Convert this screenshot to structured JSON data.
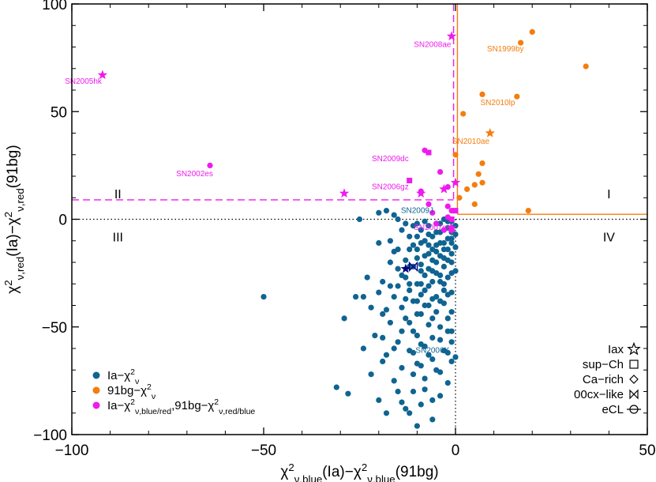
{
  "chart_data": {
    "type": "scatter",
    "xlim": [
      -100,
      50
    ],
    "ylim": [
      -100,
      100
    ],
    "x_ticks": [
      -100,
      -50,
      0,
      50
    ],
    "y_ticks": [
      -100,
      -50,
      0,
      50,
      100
    ],
    "xlabel": "χ²ν,blue(Ia)−χ²ν,blue(91bg)",
    "ylabel": "χ²ν,red(Ia)−χ²ν,red(91bg)",
    "colors": {
      "ia": "#0f6491",
      "bg": "#f47d0e",
      "mixed": "#ee1aee",
      "black": "#000000"
    },
    "guide_lines": {
      "magenta_horizontal_y": 9,
      "magenta_vertical_x": -0.5,
      "orange_vertical_x": 0.5,
      "orange_horizontal_y": 2.3,
      "dotted_zero": true
    },
    "quadrants": [
      {
        "label": "I",
        "x": 40,
        "y": 12
      },
      {
        "label": "II",
        "x": -88,
        "y": 12
      },
      {
        "label": "III",
        "x": -88,
        "y": -8
      },
      {
        "label": "IV",
        "x": 40,
        "y": -8
      }
    ],
    "series": [
      {
        "name": "Ia−χ²ν",
        "color": "#0f6491",
        "points": [
          [
            -50,
            -36
          ],
          [
            -29,
            -46
          ],
          [
            -31,
            -78
          ],
          [
            -28,
            -81
          ],
          [
            -24,
            -36
          ],
          [
            -26,
            -36
          ],
          [
            -25,
            0
          ],
          [
            -23,
            -27
          ],
          [
            -22,
            -41
          ],
          [
            -22,
            -72
          ],
          [
            -20,
            -34
          ],
          [
            -20,
            -84
          ],
          [
            -19,
            -29
          ],
          [
            -19,
            -55
          ],
          [
            -18,
            -42
          ],
          [
            -18,
            -63
          ],
          [
            -17,
            -20
          ],
          [
            -17,
            -48
          ],
          [
            -16,
            -36
          ],
          [
            -16,
            -75
          ],
          [
            -15,
            -23
          ],
          [
            -15,
            -31
          ],
          [
            -15,
            -57
          ],
          [
            -14,
            -41
          ],
          [
            -14,
            -69
          ],
          [
            -14,
            -85
          ],
          [
            -13,
            -19
          ],
          [
            -13,
            -27
          ],
          [
            -13,
            -46
          ],
          [
            -12,
            -33
          ],
          [
            -12,
            -61
          ],
          [
            -12,
            -90
          ],
          [
            -11,
            -22
          ],
          [
            -11,
            -38
          ],
          [
            -11,
            -52
          ],
          [
            -11,
            -80
          ],
          [
            -10,
            -14
          ],
          [
            -10,
            -30
          ],
          [
            -10,
            -44
          ],
          [
            -10,
            -67
          ],
          [
            -10,
            -96
          ],
          [
            -9,
            -5
          ],
          [
            -9,
            -21
          ],
          [
            -9,
            -35
          ],
          [
            -9,
            -58
          ],
          [
            -9,
            -86
          ],
          [
            -8,
            -10
          ],
          [
            -8,
            -26
          ],
          [
            -8,
            -40
          ],
          [
            -8,
            -74
          ],
          [
            -7,
            -3
          ],
          [
            -7,
            -16
          ],
          [
            -7,
            -31
          ],
          [
            -7,
            -49
          ],
          [
            -7,
            -63
          ],
          [
            -6,
            -8
          ],
          [
            -6,
            -19
          ],
          [
            -6,
            -37
          ],
          [
            -6,
            -55
          ],
          [
            -6,
            -93
          ],
          [
            -5,
            -2
          ],
          [
            -5,
            -12
          ],
          [
            -5,
            -25
          ],
          [
            -5,
            -43
          ],
          [
            -5,
            -70
          ],
          [
            -4,
            -6
          ],
          [
            -4,
            -17
          ],
          [
            -4,
            -29
          ],
          [
            -4,
            -50
          ],
          [
            -4,
            -82
          ],
          [
            -3,
            0
          ],
          [
            -3,
            -11
          ],
          [
            -3,
            -22
          ],
          [
            -3,
            -39
          ],
          [
            -3,
            -61
          ],
          [
            -2,
            -4
          ],
          [
            -2,
            -14
          ],
          [
            -2,
            -27
          ],
          [
            -2,
            -46
          ],
          [
            -2,
            -76
          ],
          [
            -1,
            -1
          ],
          [
            -1,
            -9
          ],
          [
            -1,
            -20
          ],
          [
            -1,
            -34
          ],
          [
            -1,
            -57
          ],
          [
            -1,
            -66
          ],
          [
            0,
            -3
          ],
          [
            0,
            -13
          ],
          [
            0,
            -24
          ],
          [
            0,
            -64
          ],
          [
            -20,
            3
          ],
          [
            -18,
            4
          ],
          [
            -16,
            2
          ],
          [
            -15,
            0
          ],
          [
            -14,
            -5
          ],
          [
            -13,
            -2
          ],
          [
            -12,
            -8
          ],
          [
            -11,
            -12
          ],
          [
            -10,
            -18
          ],
          [
            -9,
            -24
          ],
          [
            -8,
            -1
          ],
          [
            -7,
            -7
          ],
          [
            -6,
            -14
          ],
          [
            -5,
            -20
          ],
          [
            -4,
            -26
          ],
          [
            -3,
            -33
          ],
          [
            -2,
            -9
          ],
          [
            -1,
            -16
          ],
          [
            0,
            -7
          ],
          [
            -17,
            -10
          ],
          [
            -15,
            -14
          ],
          [
            -13,
            -37
          ],
          [
            -12,
            -22
          ],
          [
            -11,
            -3
          ],
          [
            -10,
            -8
          ],
          [
            -9,
            -11
          ],
          [
            -8,
            -17
          ],
          [
            -7,
            -23
          ],
          [
            -6,
            -29
          ],
          [
            -5,
            -6
          ],
          [
            -4,
            -2
          ],
          [
            -3,
            -5
          ],
          [
            -2,
            -19
          ],
          [
            -1,
            -25
          ],
          [
            -21,
            -54
          ],
          [
            -19,
            -66
          ],
          [
            -16,
            -60
          ],
          [
            -14,
            -52
          ],
          [
            -12,
            -48
          ],
          [
            -9,
            -44
          ],
          [
            -7,
            -40
          ],
          [
            -5,
            -36
          ],
          [
            -3,
            -30
          ],
          [
            -1,
            -43
          ],
          [
            -24,
            -60
          ],
          [
            -18,
            -90
          ],
          [
            -11,
            -72
          ],
          [
            -8,
            -79
          ],
          [
            -6,
            -84
          ],
          [
            -4,
            -38
          ],
          [
            -2,
            -35
          ],
          [
            -15,
            -80
          ],
          [
            -13,
            -88
          ],
          [
            -10,
            -54
          ],
          [
            -8,
            -59
          ],
          [
            -6,
            -65
          ],
          [
            -4,
            -71
          ],
          [
            -2,
            -52
          ],
          [
            -20,
            -11
          ],
          [
            -19,
            -44
          ],
          [
            -17,
            -31
          ],
          [
            -16,
            -15
          ],
          [
            -14,
            -26
          ],
          [
            -12,
            -14
          ],
          [
            -10,
            -2
          ],
          [
            -9,
            -30
          ],
          [
            -7,
            -12
          ],
          [
            -5,
            -15
          ],
          [
            -3,
            -18
          ],
          [
            -1,
            -6
          ],
          [
            -11,
            -62
          ],
          [
            -9,
            -68
          ],
          [
            -6,
            -46
          ],
          [
            -4,
            -56
          ],
          [
            -2,
            -62
          ],
          [
            -1,
            -52
          ],
          [
            -12,
            -30
          ],
          [
            -10,
            -38
          ],
          [
            -8,
            -33
          ],
          [
            -6,
            -24
          ],
          [
            -4,
            -11
          ],
          [
            -3,
            -14
          ],
          [
            -2,
            -1
          ],
          [
            -1,
            -11
          ]
        ]
      },
      {
        "name": "91bg−χ²ν",
        "color": "#f47d0e",
        "points": [
          [
            20,
            87
          ],
          [
            17,
            82
          ],
          [
            34,
            71
          ],
          [
            7,
            58
          ],
          [
            16,
            57
          ],
          [
            2,
            49
          ],
          [
            0,
            30
          ],
          [
            7,
            26
          ],
          [
            6,
            21
          ],
          [
            7,
            17
          ],
          [
            5,
            16
          ],
          [
            3,
            14
          ],
          [
            1,
            10
          ],
          [
            19,
            4
          ],
          [
            5,
            7
          ]
        ]
      },
      {
        "name": "Ia−χ²ν,blue/red,91bg−χ²ν,red/blue",
        "color": "#ee1aee",
        "points": [
          [
            -64,
            25
          ],
          [
            -8,
            32
          ],
          [
            -4,
            22
          ],
          [
            -2,
            15
          ],
          [
            -2,
            6
          ],
          [
            -1,
            4
          ],
          [
            -2,
            1
          ],
          [
            -7,
            7
          ],
          [
            -9,
            13
          ],
          [
            -5,
            -2
          ],
          [
            -3,
            -5
          ],
          [
            -1,
            0
          ],
          [
            -6,
            3
          ]
        ]
      }
    ],
    "special_points": [
      {
        "kind": "star",
        "x": -92,
        "y": 67,
        "color": "#ee1aee"
      },
      {
        "kind": "star",
        "x": -29,
        "y": 12,
        "color": "#ee1aee"
      },
      {
        "kind": "star",
        "x": -1,
        "y": 85,
        "color": "#ee1aee"
      },
      {
        "kind": "star",
        "x": -9,
        "y": 12,
        "color": "#ee1aee"
      },
      {
        "kind": "star",
        "x": -3,
        "y": 14,
        "color": "#ee1aee"
      },
      {
        "kind": "star",
        "x": 0,
        "y": 17,
        "color": "#ee1aee"
      },
      {
        "kind": "star",
        "x": -1,
        "y": -4,
        "color": "#ee1aee"
      },
      {
        "kind": "star",
        "x": 9,
        "y": 40,
        "color": "#f47d0e"
      },
      {
        "kind": "star",
        "x": -13,
        "y": -23,
        "color": "#000080"
      },
      {
        "kind": "square",
        "x": -7,
        "y": 31,
        "color": "#ee1aee"
      },
      {
        "kind": "square",
        "x": -12,
        "y": 18,
        "color": "#ee1aee"
      },
      {
        "kind": "square",
        "x": 0,
        "y": 4,
        "color": "#ee1aee"
      },
      {
        "kind": "square",
        "x": -1,
        "y": 0,
        "color": "#ee1aee"
      },
      {
        "kind": "diamond",
        "x": -1,
        "y": -5,
        "color": "#ee1aee"
      },
      {
        "kind": "bowtie",
        "x": -11,
        "y": -22,
        "color": "#000080"
      }
    ],
    "annotations": [
      {
        "text": "SN2005hk",
        "x": -97,
        "y": 63,
        "color": "#ee1aee"
      },
      {
        "text": "SN2008ae",
        "x": -6,
        "y": 80,
        "color": "#ee1aee"
      },
      {
        "text": "SN1999by",
        "x": 13,
        "y": 78,
        "color": "#f47d0e"
      },
      {
        "text": "SN2010lp",
        "x": 11,
        "y": 53,
        "color": "#f47d0e"
      },
      {
        "text": "SN2010ae",
        "x": 4,
        "y": 35,
        "color": "#f47d0e"
      },
      {
        "text": "SN2002es",
        "x": -68,
        "y": 20,
        "color": "#ee1aee"
      },
      {
        "text": "SN2009dc",
        "x": -17,
        "y": 27,
        "color": "#ee1aee"
      },
      {
        "text": "SN2006gz",
        "x": -17,
        "y": 14,
        "color": "#ee1aee"
      },
      {
        "text": "SN2009J",
        "x": -10,
        "y": 3,
        "color": "#0f6491"
      },
      {
        "text": "SN2007qd",
        "x": -6,
        "y": -5,
        "color": "#ee1aee"
      },
      {
        "text": "SN2006X",
        "x": -6,
        "y": -62,
        "color": "#0f6491"
      }
    ],
    "legend_left": [
      {
        "text": "Ia−χ²ν",
        "color": "#0f6491"
      },
      {
        "text": "91bg−χ²ν",
        "color": "#f47d0e"
      },
      {
        "text": "Ia−χ²ν,blue/red,91bg−χ²ν,red/blue",
        "color": "#ee1aee"
      }
    ],
    "legend_right": [
      {
        "text": "Iax",
        "symbol": "star"
      },
      {
        "text": "sup−Ch",
        "symbol": "square"
      },
      {
        "text": "Ca−rich",
        "symbol": "diamond"
      },
      {
        "text": "00cx−like",
        "symbol": "bowtie"
      },
      {
        "text": "eCL",
        "symbol": "circle-line"
      }
    ]
  }
}
